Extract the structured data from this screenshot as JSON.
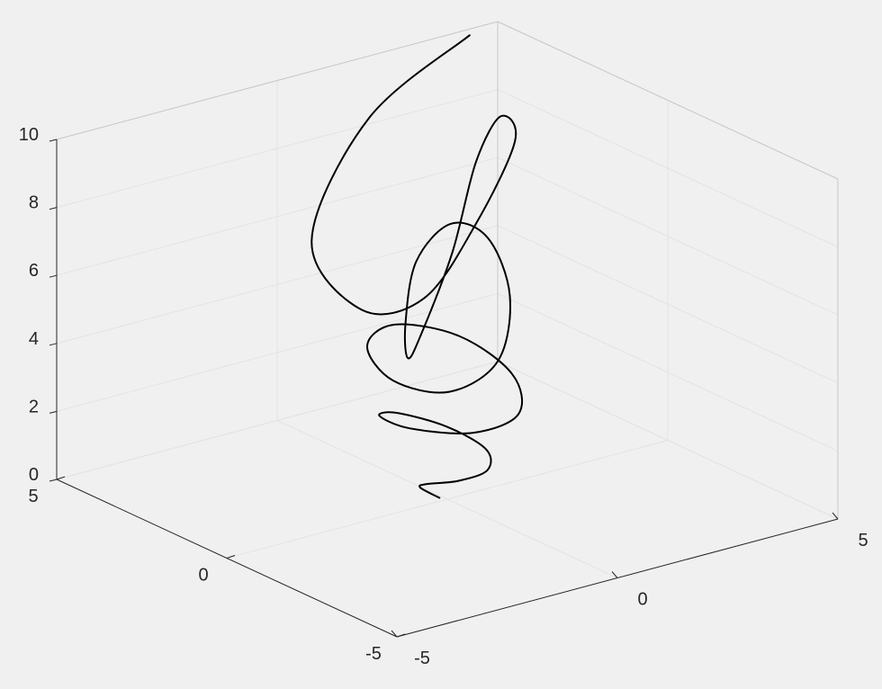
{
  "chart_data": {
    "type": "line",
    "projection": "3d",
    "title": "",
    "xlabel": "",
    "ylabel": "",
    "zlabel": "",
    "xlim": [
      -5,
      5
    ],
    "ylim": [
      -5,
      5
    ],
    "zlim": [
      0,
      10
    ],
    "grid": true,
    "colors": {
      "background": "#f0f0f0",
      "series": "#000000"
    },
    "x_ticks": [
      {
        "value": -5,
        "label": "-5"
      },
      {
        "value": 0,
        "label": "0"
      },
      {
        "value": 5,
        "label": "5"
      }
    ],
    "y_ticks": [
      {
        "value": -5,
        "label": "-5"
      },
      {
        "value": 0,
        "label": "0"
      },
      {
        "value": 5,
        "label": "5"
      }
    ],
    "z_ticks": [
      {
        "value": 0,
        "label": "0"
      },
      {
        "value": 2,
        "label": "2"
      },
      {
        "value": 4,
        "label": "4"
      },
      {
        "value": 6,
        "label": "6"
      },
      {
        "value": 8,
        "label": "8"
      },
      {
        "value": 10,
        "label": "10"
      }
    ],
    "series": [
      {
        "style": "solid",
        "x": [
          -0.07,
          -0.33,
          -0.42,
          -0.17,
          0.28,
          0.6,
          0.44,
          -0.15,
          -0.8,
          -1.05,
          -0.58,
          0.36,
          1.2,
          1.32,
          0.44,
          -0.93,
          -1.92,
          -1.77,
          -0.4,
          1.48,
          2.66,
          2.27,
          0.29,
          -2.09,
          -3.43,
          -2.8,
          -0.11,
          2.75,
          4.21,
          3.34,
          -0.14,
          -3.45,
          -5.0,
          -3.87,
          0.45,
          4.17
        ],
        "y": [
          0.14,
          0.37,
          0.05,
          -0.56,
          -0.82,
          -0.36,
          0.58,
          1.27,
          0.96,
          -0.27,
          -1.52,
          -1.63,
          -0.35,
          1.37,
          2.12,
          1.15,
          -0.89,
          -2.35,
          -2.01,
          0.08,
          2.25,
          2.84,
          1.29,
          -1.48,
          -3.29,
          -2.86,
          -0.29,
          2.72,
          3.89,
          2.34,
          -1.0,
          -3.79,
          -3.97,
          -1.03,
          2.89,
          4.75
        ],
        "z": [
          0.0,
          0.29,
          0.57,
          0.86,
          1.14,
          1.43,
          1.71,
          2.0,
          2.29,
          2.57,
          2.86,
          3.14,
          3.43,
          3.71,
          4.0,
          4.29,
          4.57,
          4.86,
          5.14,
          5.43,
          5.71,
          6.0,
          6.29,
          6.57,
          6.86,
          7.14,
          7.43,
          7.71,
          8.0,
          8.29,
          8.57,
          8.86,
          9.14,
          9.43,
          9.71,
          10.0
        ]
      }
    ]
  }
}
